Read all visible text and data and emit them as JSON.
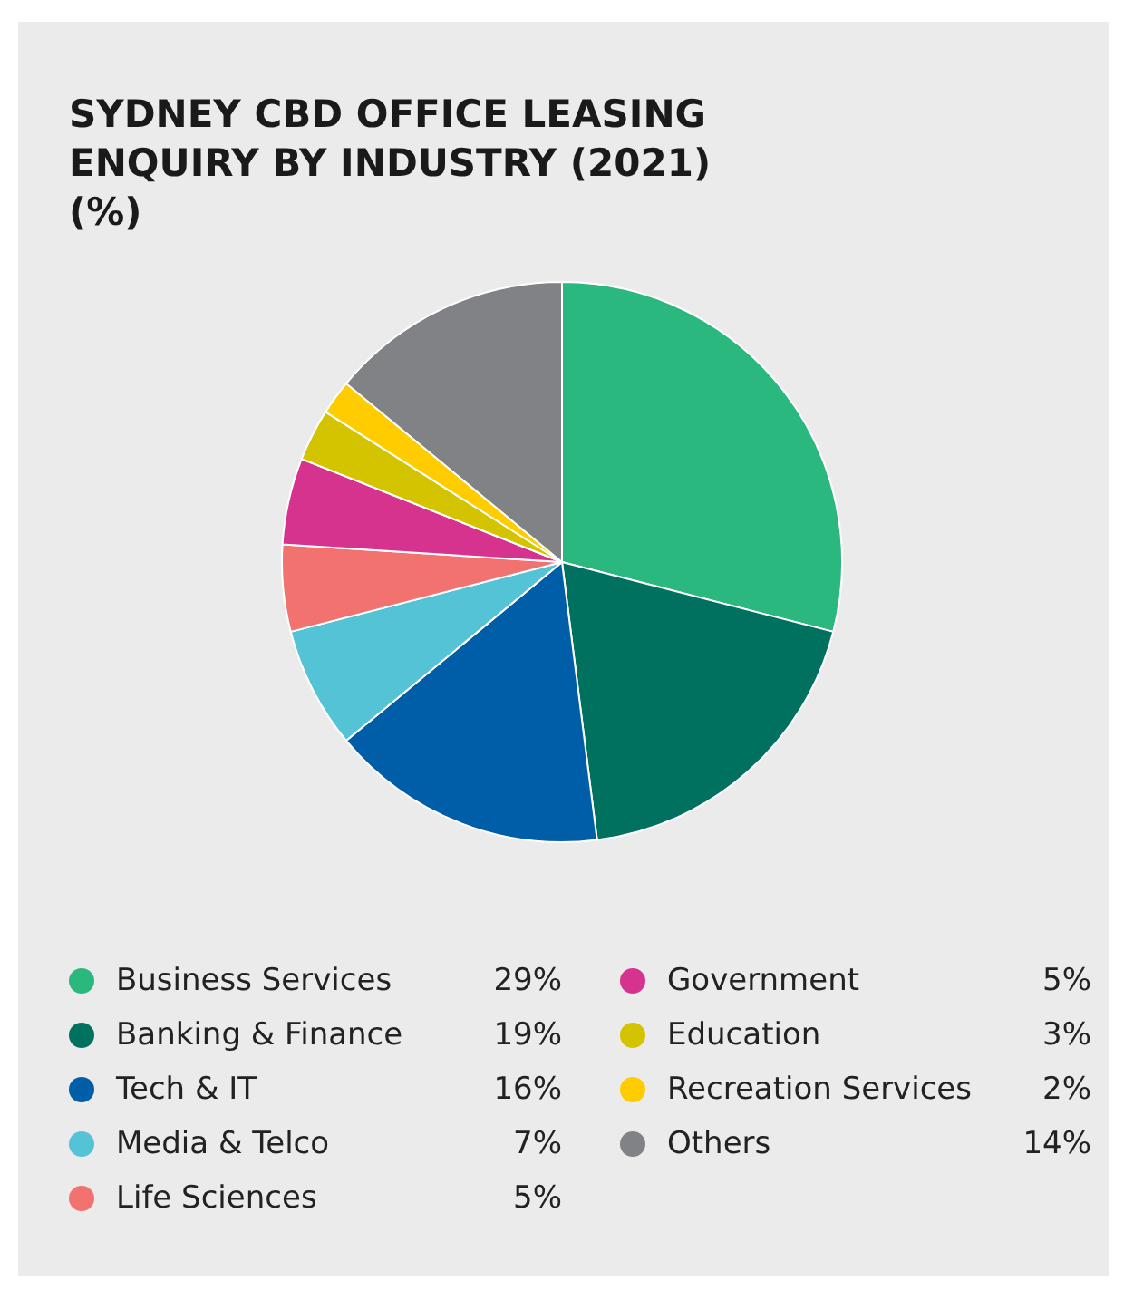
{
  "chart_data": {
    "type": "pie",
    "title": "SYDNEY CBD OFFICE LEASING ENQUIRY BY INDUSTRY (2021)",
    "subtitle": "(%)",
    "categories": [
      "Business Services",
      "Banking & Finance",
      "Tech & IT",
      "Media & Telco",
      "Life Sciences",
      "Government",
      "Education",
      "Recreation Services",
      "Others"
    ],
    "values": [
      29,
      19,
      16,
      7,
      5,
      5,
      3,
      2,
      14
    ],
    "value_labels": [
      "29%",
      "19%",
      "16%",
      "7%",
      "5%",
      "5%",
      "3%",
      "2%",
      "14%"
    ],
    "colors": [
      "#2bb87e",
      "#00705f",
      "#005ea8",
      "#55c3d6",
      "#f2726f",
      "#d6338f",
      "#d4c400",
      "#ffcc00",
      "#808285"
    ],
    "legend": "bottom"
  }
}
